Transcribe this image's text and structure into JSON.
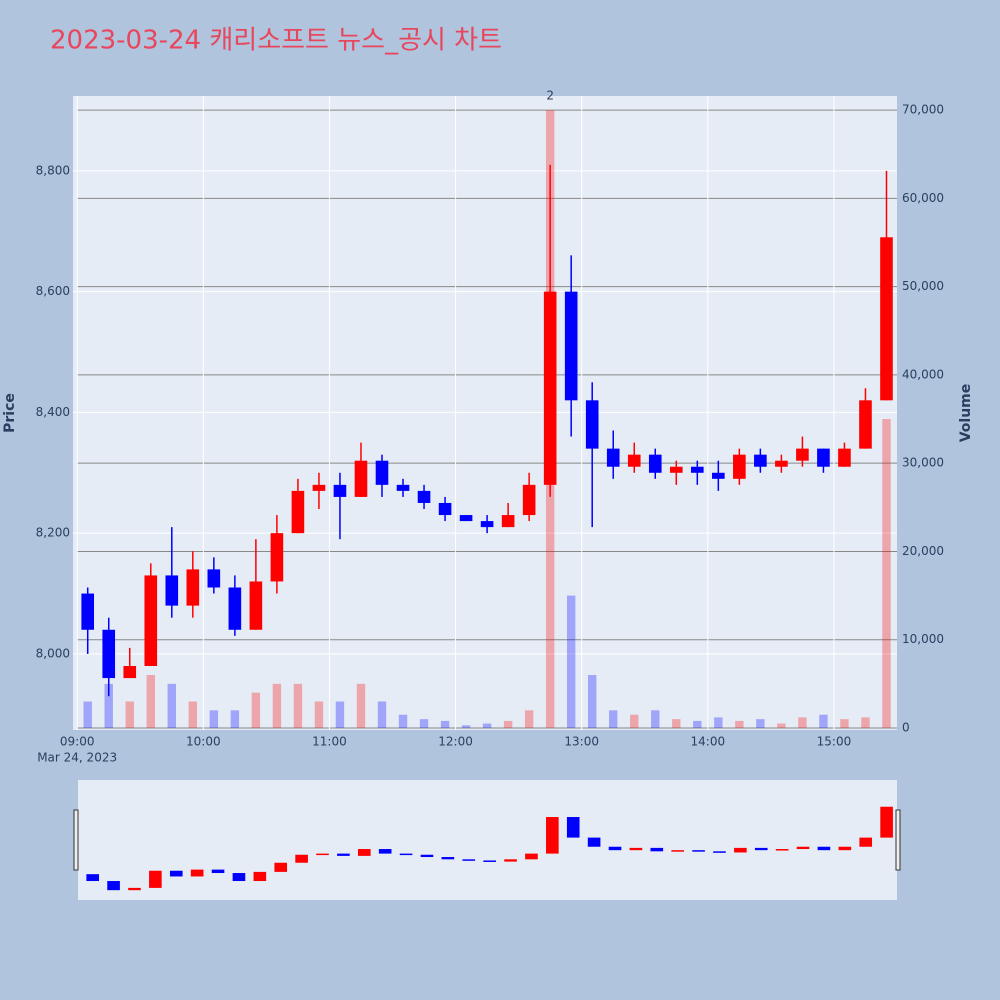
{
  "chart_data": {
    "type": "candlestick",
    "title": "2023-03-24 캐리소프트 뉴스_공시 차트",
    "x_sublabel": "Mar 24, 2023",
    "y_label": "Price",
    "y2_label": "Volume",
    "annotation": {
      "x": "12:40",
      "text": "2"
    },
    "x": [
      "09:00",
      "09:10",
      "09:20",
      "09:30",
      "09:40",
      "09:50",
      "10:00",
      "10:10",
      "10:20",
      "10:30",
      "10:40",
      "10:50",
      "11:00",
      "11:10",
      "11:20",
      "11:30",
      "11:40",
      "11:50",
      "12:00",
      "12:10",
      "12:20",
      "12:30",
      "12:40",
      "12:50",
      "13:00",
      "13:10",
      "13:20",
      "13:30",
      "13:40",
      "13:50",
      "14:00",
      "14:10",
      "14:20",
      "14:30",
      "14:40",
      "14:50",
      "15:00",
      "15:10",
      "15:20"
    ],
    "open": [
      8100,
      8040,
      7960,
      7980,
      8130,
      8080,
      8140,
      8110,
      8040,
      8120,
      8200,
      8270,
      8280,
      8260,
      8320,
      8280,
      8270,
      8250,
      8230,
      8220,
      8210,
      8230,
      8280,
      8600,
      8420,
      8340,
      8310,
      8330,
      8300,
      8310,
      8300,
      8290,
      8330,
      8310,
      8320,
      8340,
      8310,
      8340,
      8420
    ],
    "high": [
      8110,
      8060,
      8010,
      8150,
      8210,
      8170,
      8160,
      8130,
      8190,
      8230,
      8290,
      8300,
      8300,
      8350,
      8330,
      8290,
      8280,
      8260,
      8230,
      8230,
      8250,
      8300,
      8810,
      8660,
      8450,
      8370,
      8350,
      8340,
      8320,
      8320,
      8320,
      8340,
      8340,
      8330,
      8360,
      8340,
      8350,
      8440,
      8800
    ],
    "low": [
      8000,
      7930,
      7960,
      7980,
      8060,
      8060,
      8100,
      8030,
      8040,
      8100,
      8200,
      8240,
      8190,
      8260,
      8260,
      8260,
      8240,
      8220,
      8220,
      8200,
      8210,
      8220,
      8260,
      8360,
      8210,
      8290,
      8300,
      8290,
      8280,
      8280,
      8270,
      8280,
      8300,
      8300,
      8310,
      8300,
      8310,
      8340,
      8420
    ],
    "close": [
      8040,
      7960,
      7980,
      8130,
      8080,
      8140,
      8110,
      8040,
      8120,
      8200,
      8270,
      8280,
      8260,
      8320,
      8280,
      8270,
      8250,
      8230,
      8220,
      8210,
      8230,
      8280,
      8600,
      8420,
      8340,
      8310,
      8330,
      8300,
      8310,
      8300,
      8290,
      8330,
      8310,
      8320,
      8340,
      8310,
      8340,
      8420,
      8690
    ],
    "volume": [
      3000,
      5000,
      3000,
      6000,
      5000,
      3000,
      2000,
      2000,
      4000,
      5000,
      5000,
      3000,
      3000,
      5000,
      3000,
      1500,
      1000,
      800,
      300,
      500,
      800,
      2000,
      70000,
      15000,
      6000,
      2000,
      1500,
      2000,
      1000,
      800,
      1200,
      800,
      1000,
      500,
      1200,
      1500,
      1000,
      1200,
      35000
    ],
    "increasing_color": "#ff0000",
    "decreasing_color": "#0000ff",
    "xlim": [
      "08:58",
      "15:30"
    ],
    "xticks": [
      "09:00",
      "10:00",
      "11:00",
      "12:00",
      "13:00",
      "14:00",
      "15:00"
    ],
    "ylim": [
      7874,
      8924
    ],
    "yticks": [
      {
        "value": 8000,
        "label": "8,000"
      },
      {
        "value": 8200,
        "label": "8,200"
      },
      {
        "value": 8400,
        "label": "8,400"
      },
      {
        "value": 8600,
        "label": "8,600"
      },
      {
        "value": 8800,
        "label": "8,800"
      }
    ],
    "y2lim": [
      -230,
      71600
    ],
    "y2ticks": [
      0,
      {
        "value": 10000,
        "label": "10,000"
      },
      {
        "value": 20000,
        "label": "20,000"
      },
      {
        "value": 30000,
        "label": "30,000"
      },
      {
        "value": 40000,
        "label": "40,000"
      },
      {
        "value": 50000,
        "label": "50,000"
      },
      {
        "value": 60000,
        "label": "60,000"
      },
      {
        "value": 70000,
        "label": "70,000"
      }
    ],
    "grid": true
  }
}
